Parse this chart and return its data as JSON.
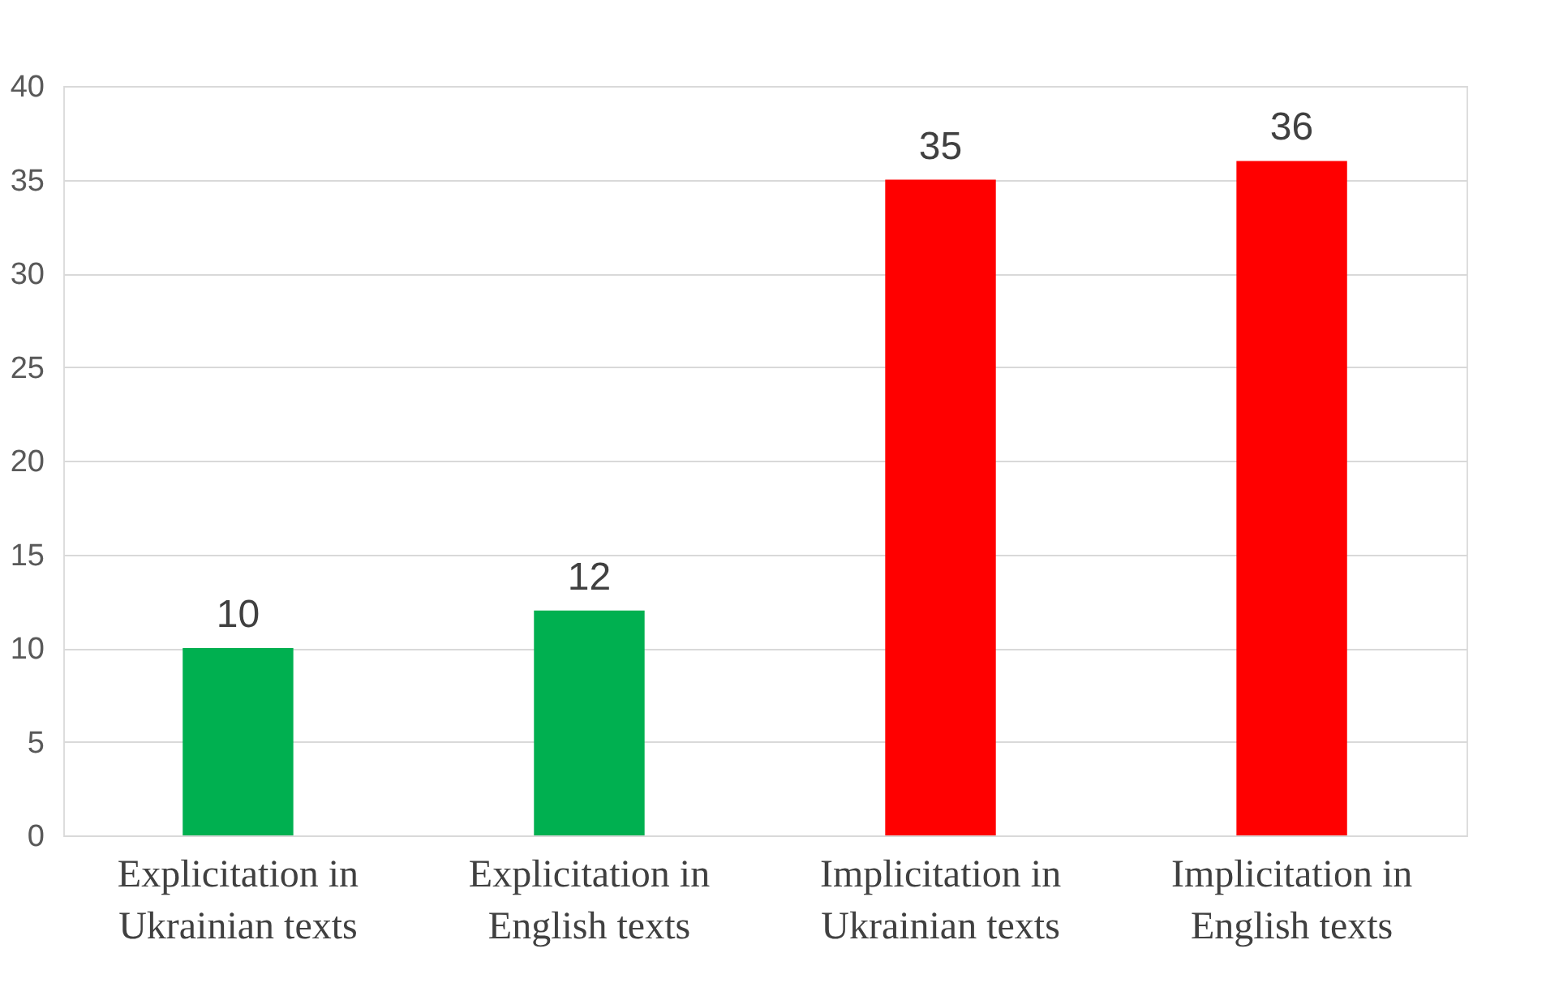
{
  "chart_data": {
    "type": "bar",
    "categories": [
      "Explicitation in Ukrainian texts",
      "Explicitation in English texts",
      "Implicitation in Ukrainian texts",
      "Implicitation in English texts"
    ],
    "values": [
      10,
      12,
      35,
      36
    ],
    "colors": [
      "#00b050",
      "#00b050",
      "#ff0000",
      "#ff0000"
    ],
    "ylim": [
      0,
      40
    ],
    "yticks": [
      0,
      5,
      10,
      15,
      20,
      25,
      30,
      35,
      40
    ],
    "grid": "y",
    "data_labels": true
  }
}
